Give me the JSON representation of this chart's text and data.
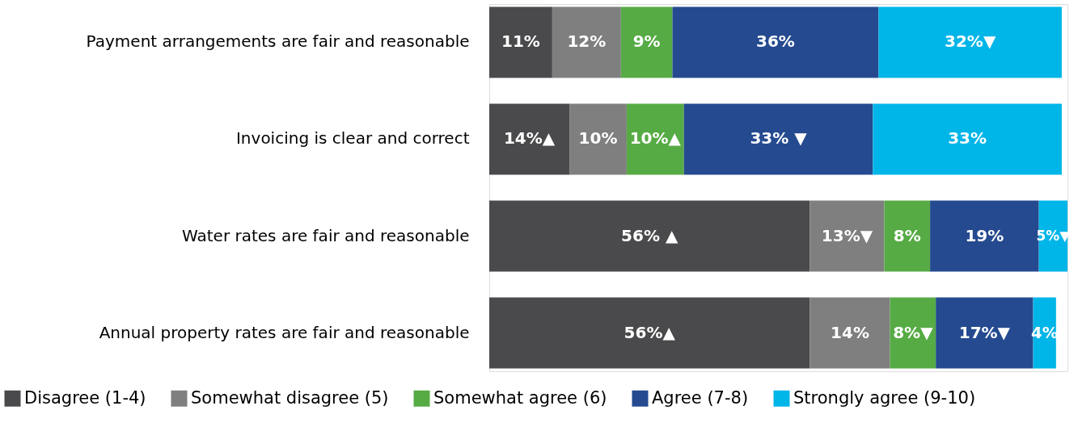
{
  "chart_data": {
    "type": "bar",
    "orientation": "horizontal",
    "stacked": true,
    "categories": [
      "Payment arrangements are fair and reasonable",
      "Invoicing is clear and correct",
      "Water rates are fair and reasonable",
      "Annual property rates are fair and reasonable"
    ],
    "series": [
      {
        "name": "Disagree (1-4)",
        "color": "#4a4a4c",
        "values": [
          11,
          14,
          56,
          56
        ],
        "value_labels": [
          "11%",
          "14%▲",
          "56% ▲",
          "56%▲"
        ]
      },
      {
        "name": "Somewhat disagree (5)",
        "color": "#7f7f7f",
        "values": [
          12,
          10,
          13,
          14
        ],
        "value_labels": [
          "12%",
          "10%",
          "13%▼",
          "14%"
        ]
      },
      {
        "name": "Somewhat agree (6)",
        "color": "#56ab44",
        "values": [
          9,
          10,
          8,
          8
        ],
        "value_labels": [
          "9%",
          "10%▲",
          "8%",
          "8%▼"
        ]
      },
      {
        "name": "Agree (7-8)",
        "color": "#254a8f",
        "values": [
          36,
          33,
          19,
          17
        ],
        "value_labels": [
          "36%",
          "33% ▼",
          "19%",
          "17%▼"
        ]
      },
      {
        "name": "Strongly agree (9-10)",
        "color": "#00b5e8",
        "values": [
          32,
          33,
          5,
          4
        ],
        "value_labels": [
          "32%▼",
          "33%",
          "5%▼",
          "4%"
        ]
      }
    ],
    "xlim": [
      0,
      101
    ],
    "tick_labels": "y",
    "legend": "bottom"
  }
}
